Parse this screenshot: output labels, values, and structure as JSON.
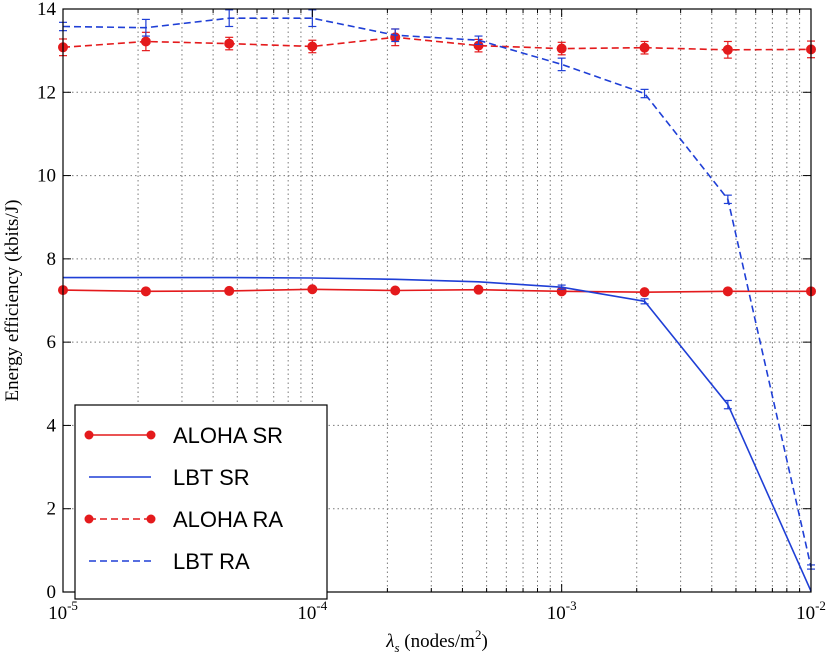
{
  "chart_data": {
    "type": "line",
    "xscale": "log",
    "xlim": [
      1e-05,
      0.01
    ],
    "ylim": [
      0,
      14
    ],
    "ylabel": "Energy efficiency (kbits/J)",
    "xlabel": {
      "symbol": "λ",
      "subscript": "s",
      "units_prefix": " (nodes/m",
      "units_exp": "2",
      "units_suffix": ")"
    },
    "yticks": [
      0,
      2,
      4,
      6,
      8,
      10,
      12,
      14
    ],
    "xticks": [
      {
        "value": 1e-05,
        "base": "10",
        "exp": "-5"
      },
      {
        "value": 0.0001,
        "base": "10",
        "exp": "-4"
      },
      {
        "value": 0.001,
        "base": "10",
        "exp": "-3"
      },
      {
        "value": 0.01,
        "base": "10",
        "exp": "-2"
      }
    ],
    "grid": true,
    "legend_position": "lower-left",
    "series": [
      {
        "name": "ALOHA SR",
        "color": "#e41a1c",
        "dash": "solid",
        "marker": true,
        "x": [
          1e-05,
          2.15e-05,
          4.64e-05,
          0.0001,
          0.000215,
          0.000464,
          0.001,
          0.00215,
          0.00464,
          0.01
        ],
        "y": [
          7.25,
          7.22,
          7.23,
          7.27,
          7.24,
          7.26,
          7.22,
          7.2,
          7.22,
          7.22
        ],
        "err": [
          0,
          0,
          0,
          0,
          0,
          0,
          0,
          0,
          0,
          0
        ]
      },
      {
        "name": "LBT SR",
        "color": "#1f3fd6",
        "dash": "solid",
        "marker": false,
        "x": [
          1e-05,
          2.15e-05,
          4.64e-05,
          0.0001,
          0.000215,
          0.000464,
          0.001,
          0.00215,
          0.00464,
          0.01
        ],
        "y": [
          7.55,
          7.55,
          7.55,
          7.54,
          7.51,
          7.45,
          7.32,
          6.98,
          4.5,
          0.02
        ],
        "err": [
          0,
          0,
          0,
          0,
          0,
          0,
          0.05,
          0.06,
          0.1,
          0
        ]
      },
      {
        "name": "ALOHA RA",
        "color": "#e41a1c",
        "dash": "dashed",
        "marker": true,
        "x": [
          1e-05,
          2.15e-05,
          4.64e-05,
          0.0001,
          0.000215,
          0.000464,
          0.001,
          0.00215,
          0.00464,
          0.01
        ],
        "y": [
          13.08,
          13.22,
          13.17,
          13.1,
          13.32,
          13.12,
          13.05,
          13.07,
          13.02,
          13.03
        ],
        "err": [
          0.2,
          0.22,
          0.15,
          0.15,
          0.2,
          0.15,
          0.15,
          0.15,
          0.2,
          0.2
        ]
      },
      {
        "name": "LBT RA",
        "color": "#1f3fd6",
        "dash": "dashed",
        "marker": false,
        "x": [
          1e-05,
          2.15e-05,
          4.64e-05,
          0.0001,
          0.000215,
          0.000464,
          0.001,
          0.00215,
          0.00464,
          0.01
        ],
        "y": [
          13.58,
          13.55,
          13.78,
          13.78,
          13.37,
          13.25,
          12.67,
          11.97,
          9.43,
          0.6
        ],
        "err": [
          0.1,
          0.2,
          0.2,
          0.2,
          0.15,
          0.1,
          0.15,
          0.1,
          0.1,
          0.05
        ]
      }
    ]
  }
}
